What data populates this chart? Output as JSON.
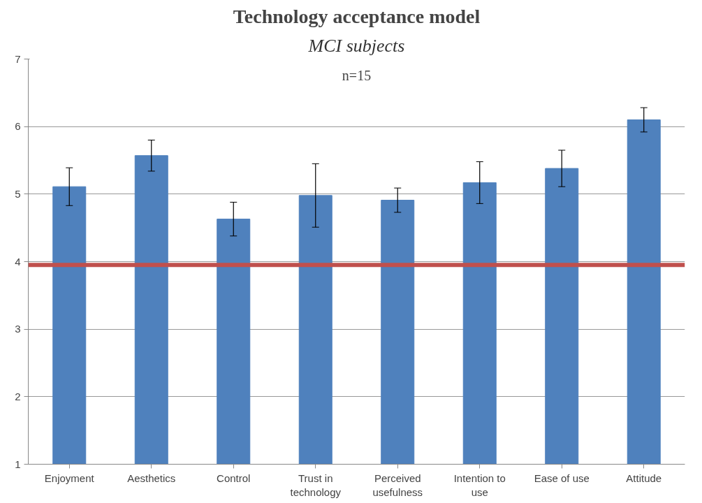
{
  "chart_data": {
    "type": "bar",
    "title": "Technology acceptance model",
    "subtitle": "MCI subjects",
    "annotations": [
      "n=15"
    ],
    "categories": [
      "Enjoyment",
      "Aesthetics",
      "Control",
      "Trust in technology",
      "Perceived usefulness",
      "Intention to use",
      "Ease of use",
      "Attitude"
    ],
    "values": [
      5.11,
      5.57,
      4.63,
      4.98,
      4.91,
      5.17,
      5.38,
      6.1
    ],
    "errors": [
      0.28,
      0.23,
      0.25,
      0.47,
      0.18,
      0.31,
      0.27,
      0.18
    ],
    "color": "#4f81bd",
    "ylim": [
      1,
      7
    ],
    "yticks": [
      1,
      2,
      3,
      4,
      5,
      6,
      7
    ],
    "grid": "y",
    "ref_lines": [
      {
        "axis": "y",
        "value": 3.95,
        "color": "#c0504d"
      }
    ]
  }
}
